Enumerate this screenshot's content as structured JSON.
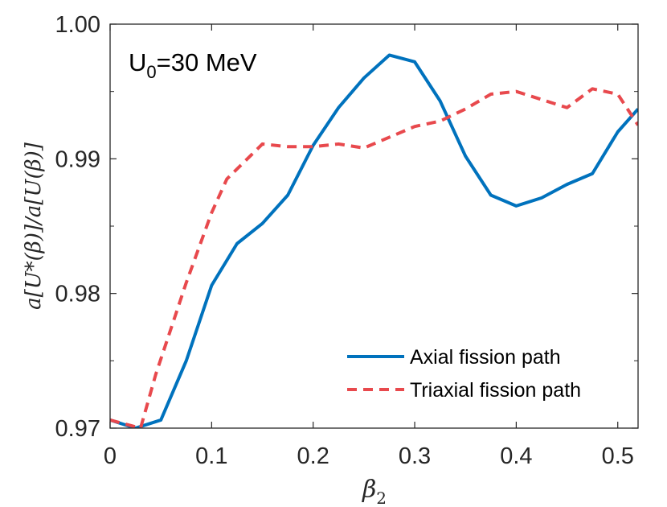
{
  "chart_data": {
    "type": "line",
    "title": "",
    "annotation": {
      "main": "U",
      "sub": "0",
      "rest": "=30 MeV"
    },
    "xlabel": {
      "main": "β",
      "sub": "2"
    },
    "ylabel": "a[U*(β)]/a[U(β)]",
    "xlim": [
      0,
      0.52
    ],
    "ylim": [
      0.97,
      1.0
    ],
    "xticks": [
      0,
      0.1,
      0.2,
      0.3,
      0.4,
      0.5
    ],
    "xtick_labels": [
      "0",
      "0.1",
      "0.2",
      "0.3",
      "0.4",
      "0.5"
    ],
    "yticks": [
      0.97,
      0.98,
      0.99,
      1.0
    ],
    "ytick_labels": [
      "0.97",
      "0.98",
      "0.99",
      "1.00"
    ],
    "yminor_ticks": [
      0.975,
      0.985,
      0.995
    ],
    "legend_position": "bottom-right",
    "series": [
      {
        "name": "Axial fission path",
        "color": "#0072BD",
        "style": "solid",
        "x": [
          0,
          0.025,
          0.05,
          0.075,
          0.1,
          0.125,
          0.15,
          0.175,
          0.2,
          0.225,
          0.25,
          0.275,
          0.3,
          0.325,
          0.35,
          0.375,
          0.4,
          0.425,
          0.45,
          0.475,
          0.5,
          0.52
        ],
        "y": [
          0.9706,
          0.97,
          0.9706,
          0.975,
          0.9806,
          0.9837,
          0.9852,
          0.9873,
          0.991,
          0.9938,
          0.996,
          0.9977,
          0.9972,
          0.9943,
          0.9902,
          0.9873,
          0.9865,
          0.9871,
          0.9881,
          0.9889,
          0.992,
          0.9937
        ]
      },
      {
        "name": "Triaxial fission path",
        "color": "#E8494D",
        "style": "dashed",
        "x": [
          0,
          0.03,
          0.045,
          0.075,
          0.1,
          0.115,
          0.15,
          0.175,
          0.2,
          0.225,
          0.25,
          0.275,
          0.3,
          0.325,
          0.35,
          0.375,
          0.4,
          0.425,
          0.45,
          0.475,
          0.5,
          0.52
        ],
        "y": [
          0.9706,
          0.97,
          0.974,
          0.9808,
          0.986,
          0.9885,
          0.9911,
          0.9909,
          0.9909,
          0.9911,
          0.9908,
          0.9916,
          0.9924,
          0.9928,
          0.9937,
          0.9948,
          0.995,
          0.9944,
          0.9938,
          0.9952,
          0.9948,
          0.9925
        ]
      }
    ]
  }
}
